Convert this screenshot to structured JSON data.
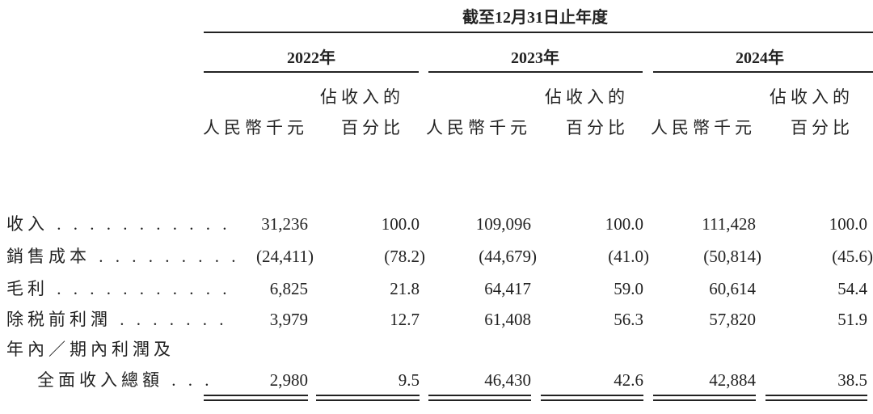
{
  "header": {
    "period": "截至12月31日止年度",
    "years": [
      "2022年",
      "2023年",
      "2024年"
    ],
    "columns": [
      [
        "人民幣千元"
      ],
      [
        "佔收入的",
        "百分比"
      ],
      [
        "人民幣千元"
      ],
      [
        "佔收入的",
        "百分比"
      ],
      [
        "人民幣千元"
      ],
      [
        "佔收入的",
        "百分比"
      ]
    ]
  },
  "table": {
    "rows": [
      {
        "label": [
          "收入 . . . . . . . . . . ."
        ],
        "values": [
          "31,236",
          "100.0",
          "109,096",
          "100.0",
          "111,428",
          "100.0"
        ]
      },
      {
        "label": [
          "銷售成本 . . . . . . . . ."
        ],
        "values": [
          "(24,411)",
          "(78.2)",
          "(44,679)",
          "(41.0)",
          "(50,814)",
          "(45.6)"
        ]
      },
      {
        "label": [
          "毛利 . . . . . . . . . . ."
        ],
        "values": [
          "6,825",
          "21.8",
          "64,417",
          "59.0",
          "60,614",
          "54.4"
        ]
      },
      {
        "label": [
          "除税前利潤 . . . . . . ."
        ],
        "values": [
          "3,979",
          "12.7",
          "61,408",
          "56.3",
          "57,820",
          "51.9"
        ]
      },
      {
        "label": [
          "年內／期內利潤及",
          "全面收入總額 . . ."
        ],
        "values": [
          "2,980",
          "9.5",
          "46,430",
          "42.6",
          "42,884",
          "38.5"
        ]
      }
    ]
  }
}
